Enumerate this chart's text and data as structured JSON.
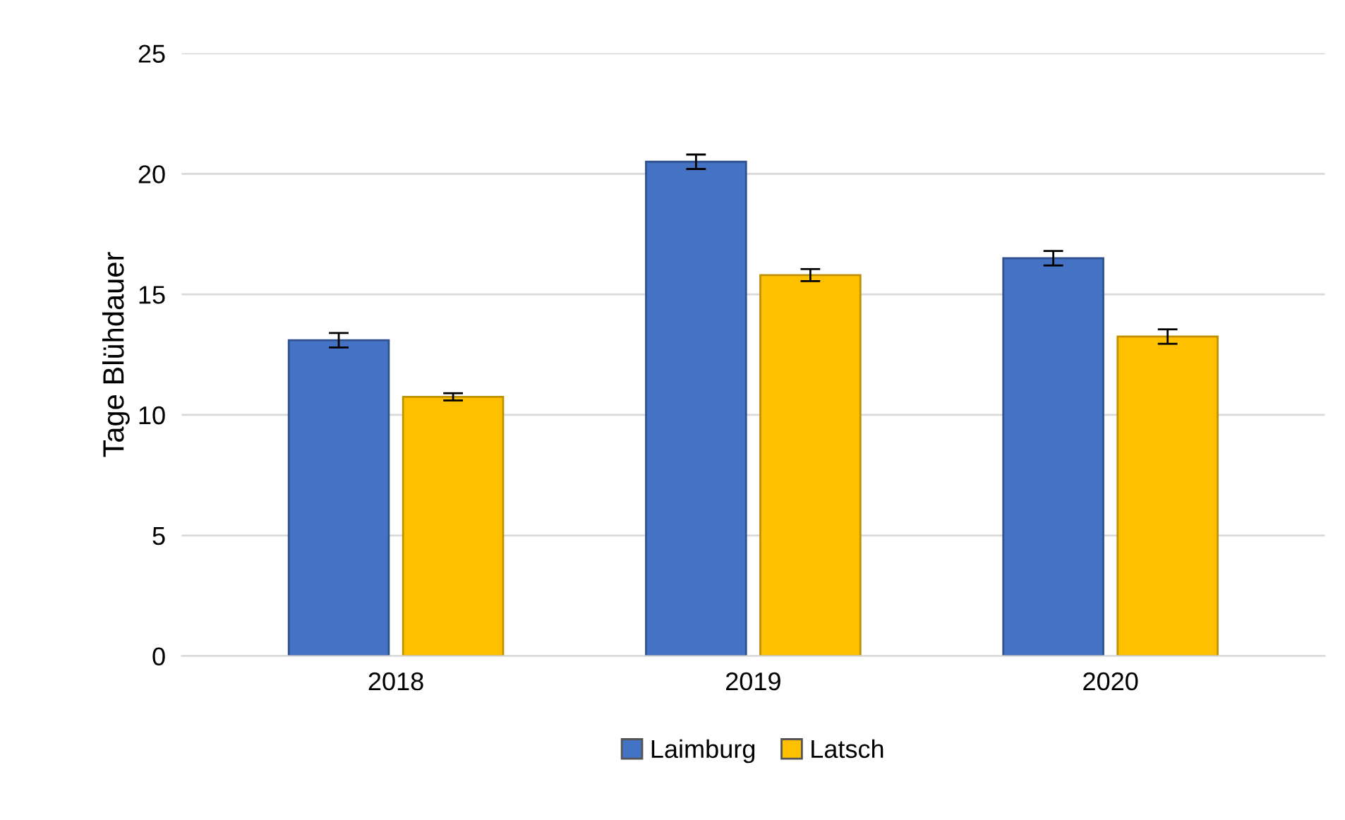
{
  "chart_data": {
    "type": "bar",
    "ylabel": "Tage Blühdauer",
    "categories": [
      "2018",
      "2019",
      "2020"
    ],
    "series": [
      {
        "name": "Laimburg",
        "color": "#4472c4",
        "values": [
          13.1,
          20.5,
          16.5
        ],
        "errors": [
          0.3,
          0.3,
          0.3
        ]
      },
      {
        "name": "Latsch",
        "color": "#ffc000",
        "values": [
          10.75,
          15.8,
          13.25
        ],
        "errors": [
          0.15,
          0.25,
          0.3
        ]
      }
    ],
    "ylim": [
      0,
      25
    ],
    "yticks": [
      0,
      5,
      10,
      15,
      20,
      25
    ],
    "grid": "y",
    "legend": "bottom"
  }
}
